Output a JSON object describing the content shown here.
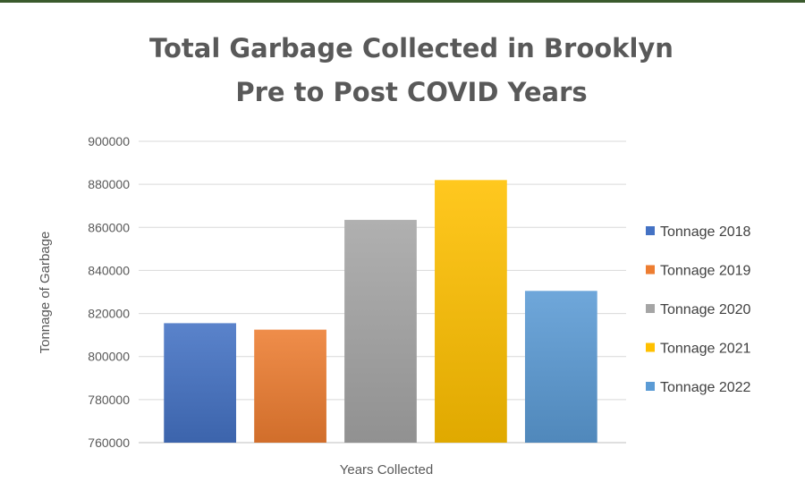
{
  "chart_data": {
    "type": "bar",
    "title_lines": [
      "Total Garbage Collected in Brooklyn",
      "Pre to Post COVID Years"
    ],
    "xlabel": "Years Collected",
    "ylabel": "Tonnage of Garbage",
    "ylim": [
      760000,
      900000
    ],
    "yticks": [
      760000,
      780000,
      800000,
      820000,
      840000,
      860000,
      880000,
      900000
    ],
    "ytick_labels": [
      "760000",
      "780000",
      "800000",
      "820000",
      "840000",
      "860000",
      "880000",
      "900000"
    ],
    "grid": true,
    "legend_position": "right",
    "series": [
      {
        "name": "Tonnage 2018",
        "value": 815500,
        "color": "#4472c4"
      },
      {
        "name": "Tonnage 2019",
        "value": 812500,
        "color": "#ed7d31"
      },
      {
        "name": "Tonnage 2020",
        "value": 863500,
        "color": "#a5a5a5"
      },
      {
        "name": "Tonnage 2021",
        "value": 882000,
        "color": "#ffc000"
      },
      {
        "name": "Tonnage 2022",
        "value": 830500,
        "color": "#5b9bd5"
      }
    ]
  }
}
